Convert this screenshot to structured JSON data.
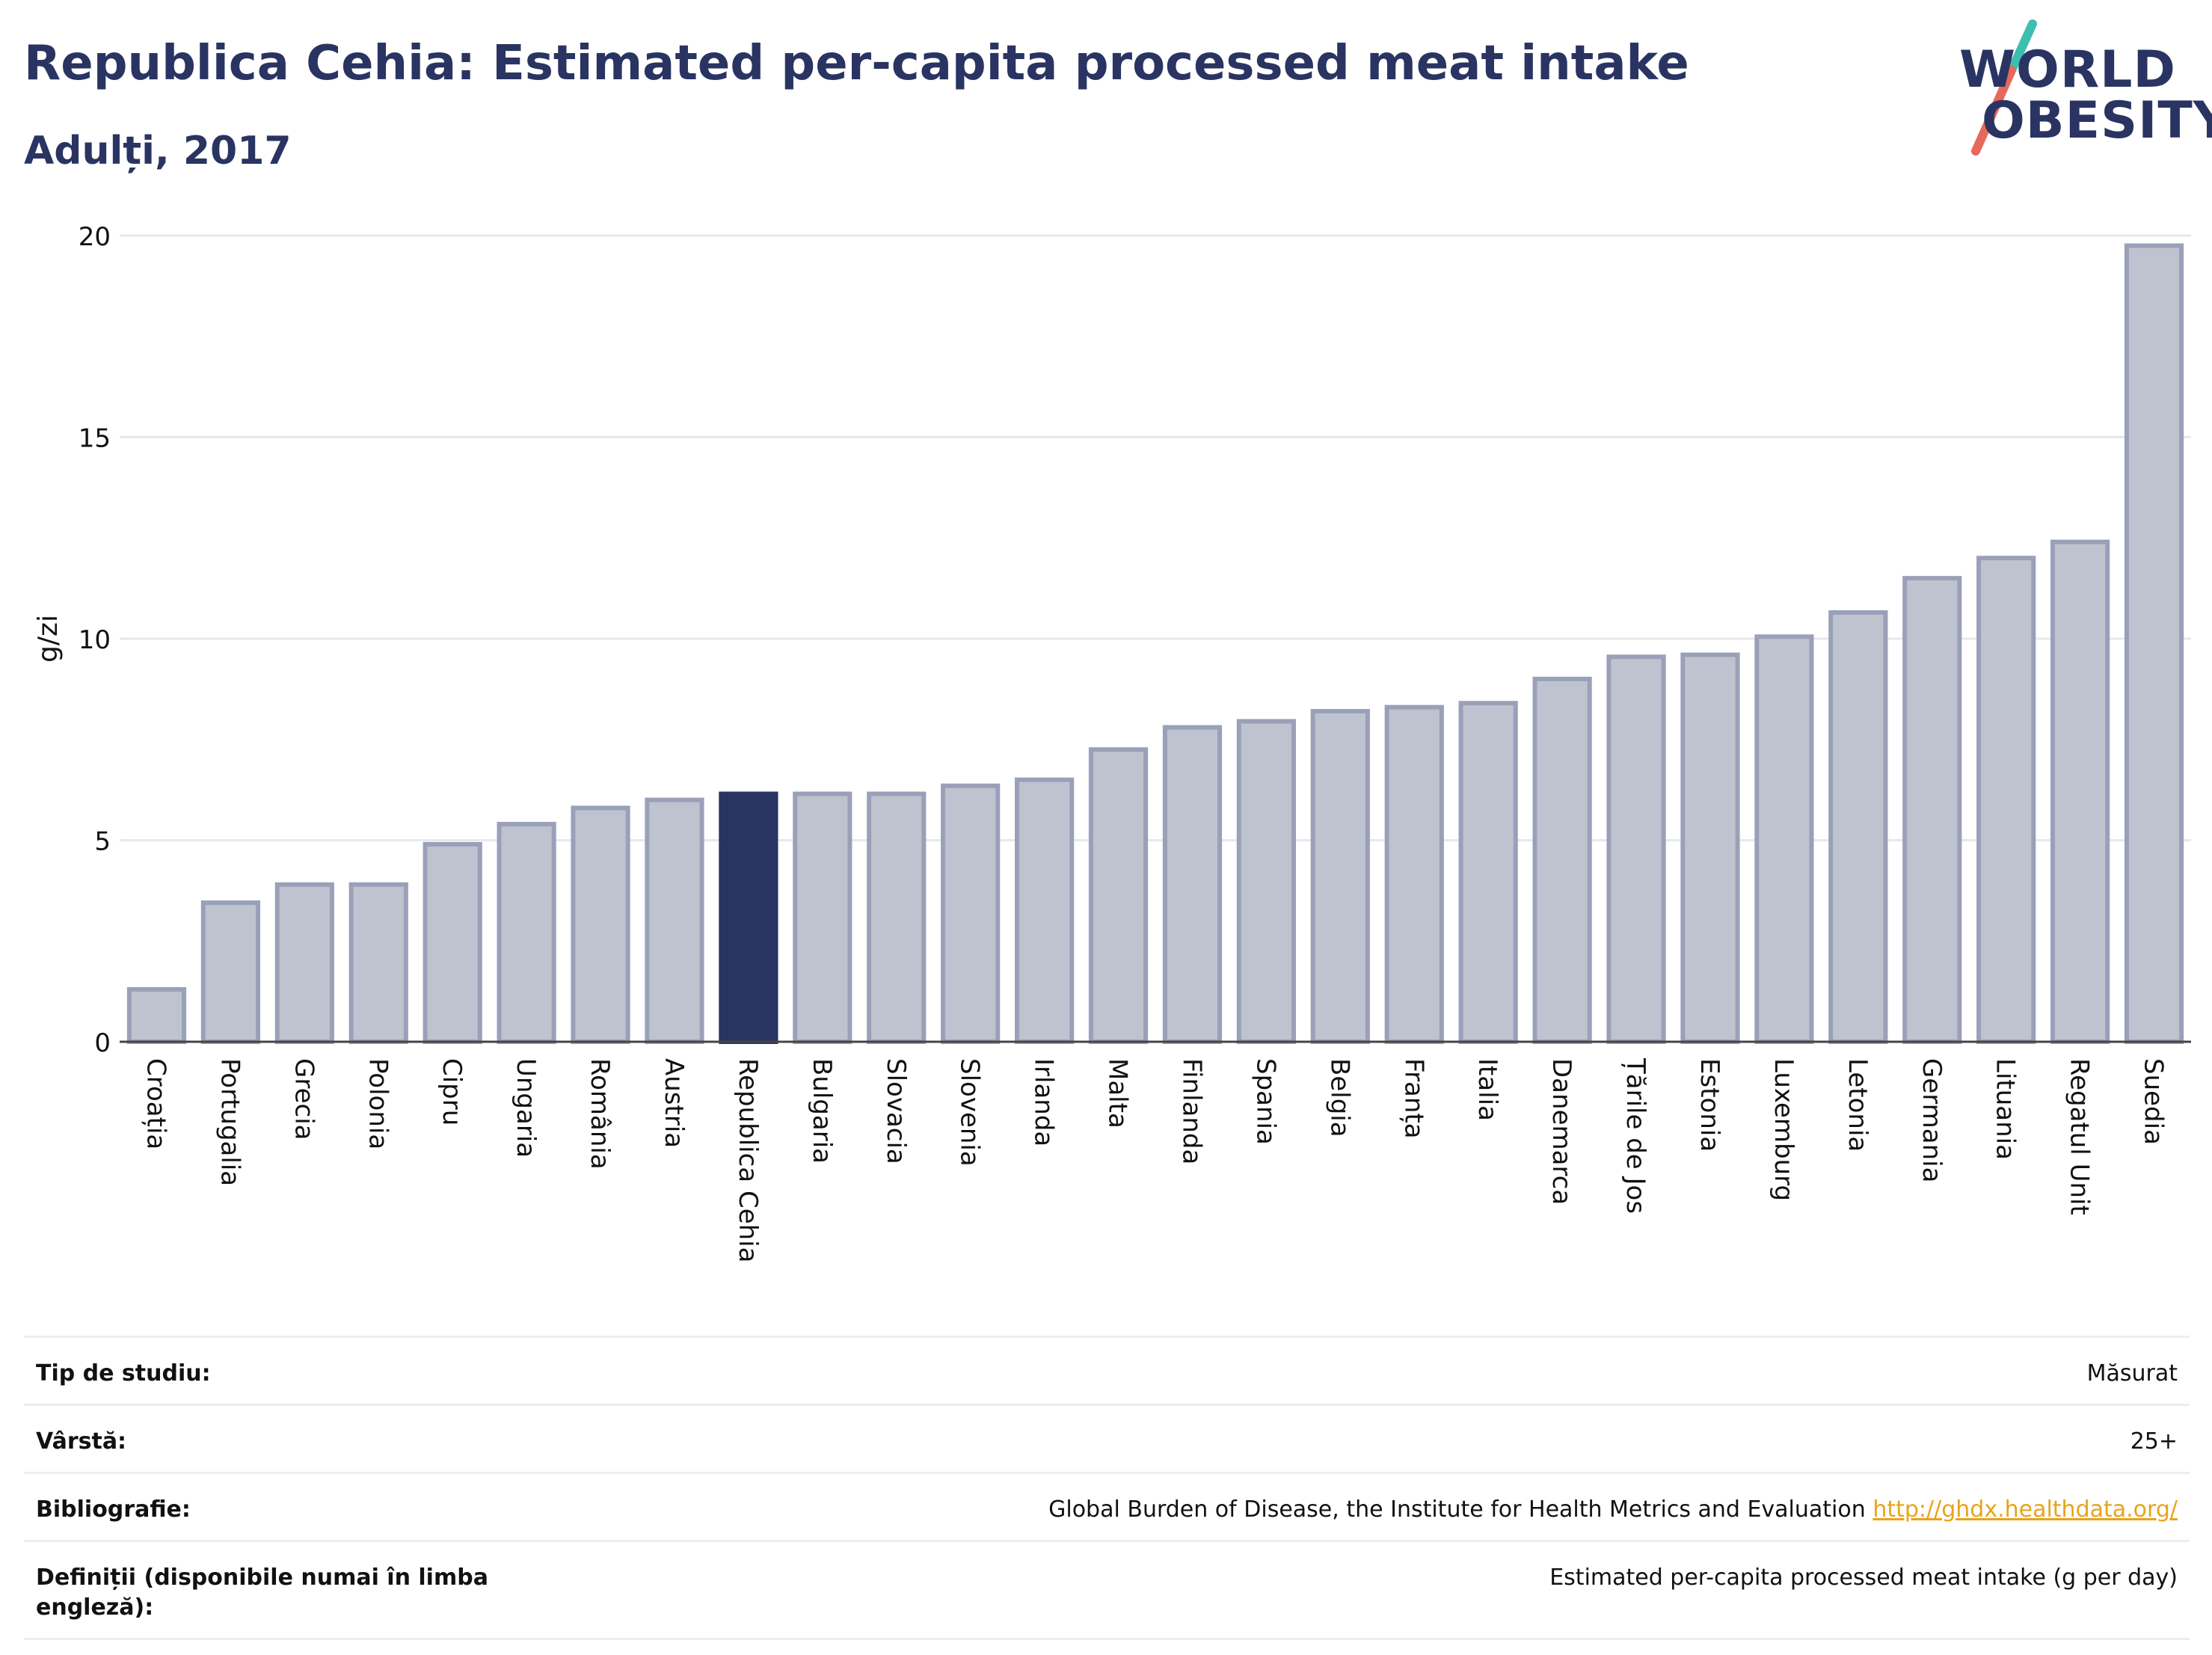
{
  "header": {
    "title": "Republica Cehia: Estimated per-capita processed meat intake",
    "subtitle": "Adulți, 2017"
  },
  "logo": {
    "line1": "WORLD",
    "line2": "OBESITY",
    "slash_colors": [
      "#3cbfae",
      "#e8685a"
    ]
  },
  "colors": {
    "bar": "#bfc3d0",
    "bar_stroke": "#9aa0b8",
    "highlight": "#2a3462",
    "grid": "#e6e8ee",
    "axis_text": "#111111"
  },
  "chart_data": {
    "type": "bar",
    "title": "Republica Cehia: Estimated per-capita processed meat intake",
    "subtitle": "Adulți, 2017",
    "xlabel": "",
    "ylabel": "g/zi",
    "ylim": [
      0,
      20
    ],
    "yticks": [
      0,
      5,
      10,
      15,
      20
    ],
    "grid": true,
    "highlight": "Republica Cehia",
    "categories": [
      "Croația",
      "Portugalia",
      "Grecia",
      "Polonia",
      "Cipru",
      "Ungaria",
      "România",
      "Austria",
      "Republica Cehia",
      "Bulgaria",
      "Slovacia",
      "Slovenia",
      "Irlanda",
      "Malta",
      "Finlanda",
      "Spania",
      "Belgia",
      "Franța",
      "Italia",
      "Danemarca",
      "Țările de Jos",
      "Estonia",
      "Luxemburg",
      "Letonia",
      "Germania",
      "Lituania",
      "Regatul Unit",
      "Suedia"
    ],
    "values": [
      1.3,
      3.45,
      3.9,
      3.9,
      4.9,
      5.4,
      5.8,
      6.0,
      6.15,
      6.15,
      6.15,
      6.35,
      6.5,
      7.25,
      7.8,
      7.95,
      8.2,
      8.3,
      8.4,
      9.0,
      9.55,
      9.6,
      10.05,
      10.65,
      11.5,
      12.0,
      12.4,
      19.75
    ]
  },
  "info": [
    {
      "key": "Tip de studiu:",
      "value": "Măsurat"
    },
    {
      "key": "Vârstă:",
      "value": "25+"
    },
    {
      "key": "Bibliografie:",
      "value": "Global Burden of Disease, the Institute for Health Metrics and Evaluation",
      "link": "http://ghdx.healthdata.org/"
    },
    {
      "key": "Definiții (disponibile numai în limba engleză):",
      "value": "Estimated per-capita processed meat intake (g per day)"
    }
  ]
}
